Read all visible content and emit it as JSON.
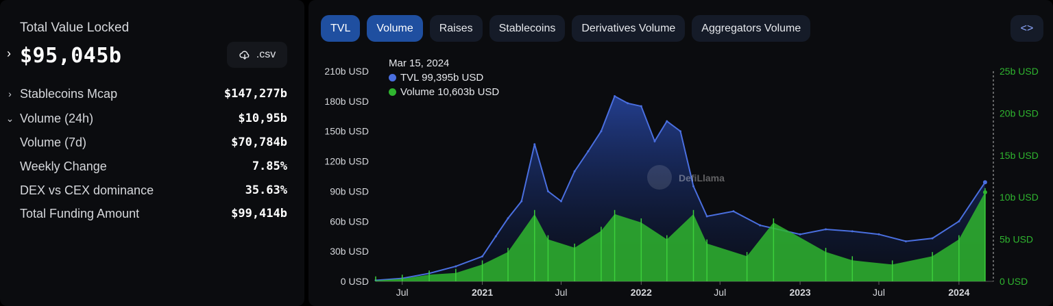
{
  "summary": {
    "tvl_label": "Total Value Locked",
    "tvl_value": "$95,045b",
    "csv_label": ".csv",
    "rows": [
      {
        "label": "Stablecoins Mcap",
        "value": "$147,277b",
        "chevron": "right"
      },
      {
        "label": "Volume (24h)",
        "value": "$10,95b",
        "chevron": "down"
      },
      {
        "label": "Volume (7d)",
        "value": "$70,784b",
        "chevron": ""
      },
      {
        "label": "Weekly Change",
        "value": "7.85%",
        "chevron": ""
      },
      {
        "label": "DEX vs CEX dominance",
        "value": "35.63%",
        "chevron": ""
      },
      {
        "label": "Total Funding Amount",
        "value": "$99,414b",
        "chevron": ""
      }
    ]
  },
  "tabs": [
    {
      "label": "TVL",
      "active": true
    },
    {
      "label": "Volume",
      "active": true
    },
    {
      "label": "Raises",
      "active": false
    },
    {
      "label": "Stablecoins",
      "active": false
    },
    {
      "label": "Derivatives Volume",
      "active": false
    },
    {
      "label": "Aggregators Volume",
      "active": false
    }
  ],
  "embed_icon": "code-brackets-icon",
  "tooltip": {
    "date": "Mar 15, 2024",
    "tvl": "TVL  99,395b USD",
    "volume": "Volume  10,603b USD"
  },
  "watermark": "DefiLlama",
  "colors": {
    "tvl": "#4a6fe0",
    "volume": "#2fb52f",
    "active_tab": "#1f4fa0"
  },
  "chart_data": {
    "type": "line",
    "x_tick_labels": [
      "Jul",
      "2021",
      "Jul",
      "2022",
      "Jul",
      "2023",
      "Jul",
      "2024"
    ],
    "y_left_ticks": [
      "210b USD",
      "180b USD",
      "150b USD",
      "120b USD",
      "90b USD",
      "60b USD",
      "30b USD",
      "0 USD"
    ],
    "y_right_ticks": [
      "25b USD",
      "20b USD",
      "15b USD",
      "10b USD",
      "5b USD",
      "0 USD"
    ],
    "ylim_left": [
      0,
      210
    ],
    "ylim_right": [
      0,
      25
    ],
    "series": [
      {
        "name": "TVL",
        "axis": "left",
        "x": [
          "2020-05",
          "2020-07",
          "2020-09",
          "2020-11",
          "2021-01",
          "2021-02",
          "2021-03",
          "2021-04",
          "2021-05",
          "2021-06",
          "2021-07",
          "2021-08",
          "2021-09",
          "2021-10",
          "2021-11",
          "2021-12",
          "2022-01",
          "2022-02",
          "2022-03",
          "2022-04",
          "2022-05",
          "2022-06",
          "2022-08",
          "2022-10",
          "2022-12",
          "2023-01",
          "2023-03",
          "2023-05",
          "2023-07",
          "2023-09",
          "2023-11",
          "2024-01",
          "2024-03"
        ],
        "values": [
          1,
          3,
          8,
          15,
          25,
          45,
          63,
          80,
          137,
          90,
          80,
          110,
          130,
          150,
          185,
          178,
          175,
          140,
          160,
          150,
          95,
          65,
          70,
          56,
          50,
          47,
          52,
          50,
          47,
          40,
          43,
          60,
          99
        ]
      },
      {
        "name": "Volume",
        "axis": "right",
        "x": [
          "2020-05",
          "2020-07",
          "2020-09",
          "2020-11",
          "2021-01",
          "2021-03",
          "2021-05",
          "2021-06",
          "2021-08",
          "2021-10",
          "2021-11",
          "2022-01",
          "2022-03",
          "2022-05",
          "2022-06",
          "2022-09",
          "2022-11",
          "2023-03",
          "2023-05",
          "2023-08",
          "2023-11",
          "2024-01",
          "2024-03"
        ],
        "values": [
          0.1,
          0.3,
          0.8,
          1.0,
          2.0,
          3.5,
          8.0,
          5.0,
          4.0,
          6.0,
          8.0,
          7.0,
          5.0,
          8.0,
          4.5,
          3.0,
          7.0,
          3.5,
          2.5,
          2.0,
          3.0,
          5.0,
          10.6
        ]
      }
    ]
  }
}
